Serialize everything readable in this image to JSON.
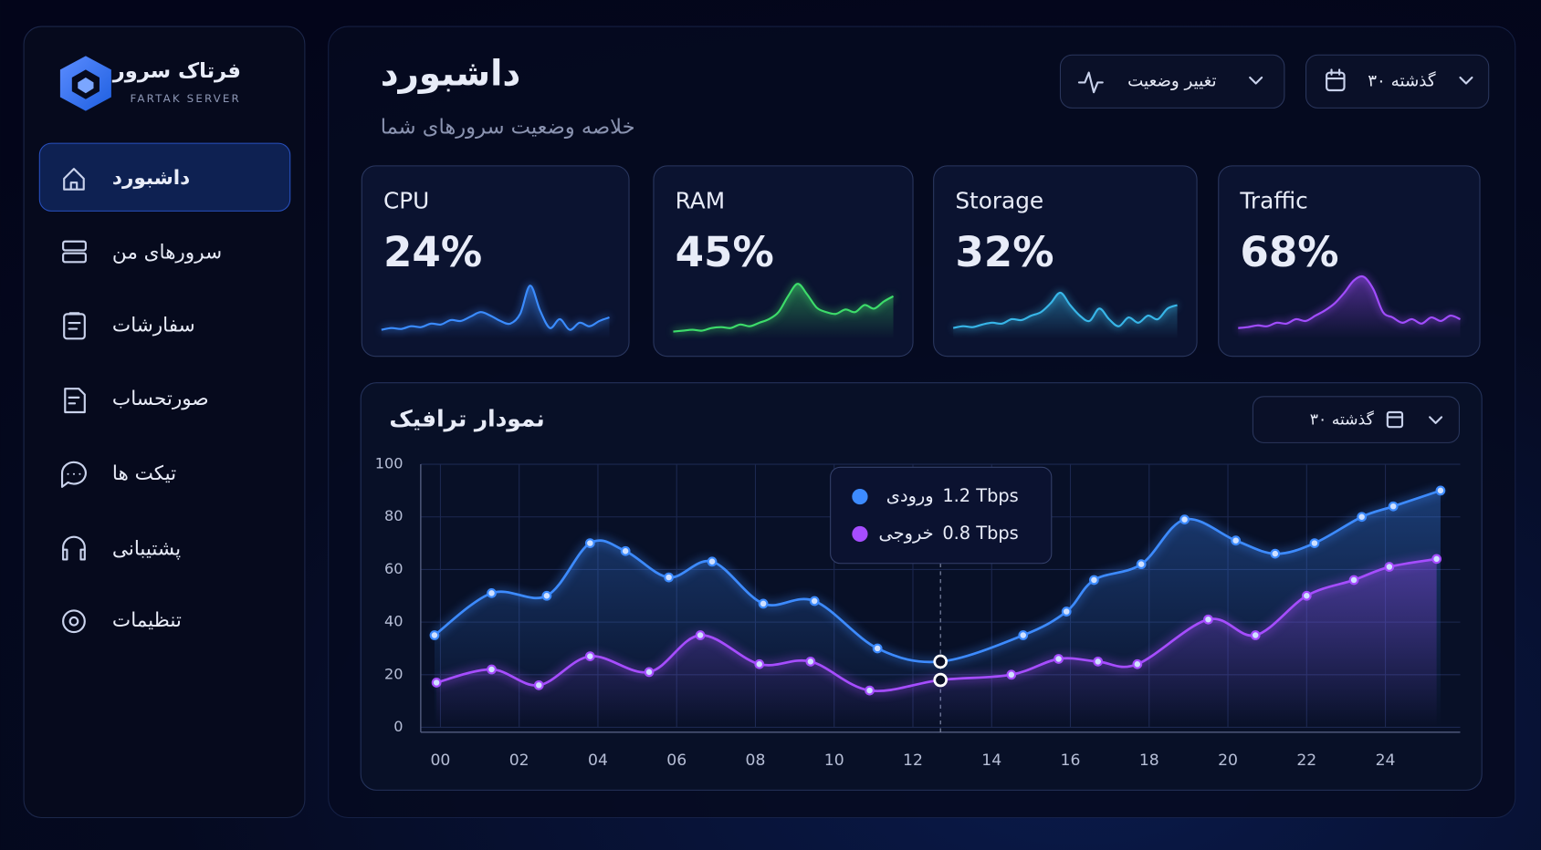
{
  "brand": {
    "name": "فرتاک سرور",
    "subtitle": "FARTAK SERVER"
  },
  "nav": [
    {
      "label": "داشبورد",
      "active": true
    },
    {
      "label": "سرورهای من",
      "active": false
    },
    {
      "label": "سفارشات",
      "active": false
    },
    {
      "label": "صورتحساب",
      "active": false
    },
    {
      "label": "تیکت ها",
      "active": false
    },
    {
      "label": "پشتیبانی",
      "active": false
    },
    {
      "label": "تنظیمات",
      "active": false
    }
  ],
  "header": {
    "title": "داشبورد",
    "subtitle": "خلاصه وضعیت سرورهای شما",
    "status_button": "تغییر وضعیت",
    "range_button": "۳۰ گذشته"
  },
  "cards": [
    {
      "label": "CPU",
      "value": "24%",
      "color": "#3b8cff",
      "trend": [
        10,
        12,
        11,
        14,
        13,
        17,
        16,
        21,
        20,
        25,
        30,
        26,
        20,
        17,
        28,
        60,
        32,
        12,
        22,
        10,
        18,
        14,
        20,
        24
      ]
    },
    {
      "label": "RAM",
      "value": "45%",
      "color": "#3ddc6a",
      "trend": [
        8,
        9,
        10,
        9,
        12,
        13,
        12,
        16,
        14,
        18,
        22,
        30,
        48,
        62,
        50,
        35,
        30,
        28,
        33,
        30,
        38,
        34,
        42,
        48
      ]
    },
    {
      "label": "Storage",
      "value": "32%",
      "color": "#38b6e8",
      "trend": [
        12,
        14,
        13,
        16,
        18,
        17,
        22,
        21,
        26,
        30,
        40,
        52,
        38,
        26,
        20,
        34,
        22,
        14,
        24,
        18,
        26,
        22,
        34,
        38
      ]
    },
    {
      "label": "Traffic",
      "value": "68%",
      "color": "#a24dff",
      "trend": [
        12,
        13,
        15,
        14,
        18,
        17,
        22,
        20,
        26,
        32,
        40,
        52,
        66,
        70,
        56,
        30,
        24,
        18,
        22,
        17,
        24,
        20,
        26,
        22
      ]
    }
  ],
  "traffic": {
    "title": "نمودار ترافیک",
    "range_button": "۳۰ گذشته",
    "tooltip": {
      "x": 12.7,
      "values": [
        "1.2 Tbps",
        "0.8 Tbps"
      ]
    }
  },
  "chart_data": {
    "type": "line",
    "xlim": [
      -0.5,
      25.9
    ],
    "xticks": [
      {
        "value": 0,
        "label": "00"
      },
      {
        "value": 2,
        "label": "02"
      },
      {
        "value": 4,
        "label": "04"
      },
      {
        "value": 6,
        "label": "06"
      },
      {
        "value": 8,
        "label": "08"
      },
      10,
      12,
      14,
      16,
      18,
      20,
      22,
      24
    ],
    "ylim": [
      0,
      100
    ],
    "yticks": [
      0,
      20,
      40,
      60,
      80,
      100
    ],
    "grid": true,
    "series": [
      {
        "name": "ورودی",
        "color": "#3d8bff",
        "x": [
          -0.15,
          1.3,
          2.7,
          3.8,
          4.7,
          5.8,
          6.9,
          8.2,
          9.5,
          11.1,
          12.7,
          14.8,
          15.9,
          16.6,
          17.8,
          18.9,
          20.2,
          21.2,
          22.2,
          23.4,
          24.2,
          25.4
        ],
        "values": [
          35,
          51,
          50,
          70,
          67,
          57,
          63,
          47,
          48,
          30,
          25,
          35,
          44,
          56,
          62,
          79,
          71,
          66,
          70,
          80,
          84,
          90
        ]
      },
      {
        "name": "خروجی",
        "color": "#a64dff",
        "x": [
          -0.1,
          1.3,
          2.5,
          3.8,
          5.3,
          6.6,
          8.1,
          9.4,
          10.9,
          12.7,
          14.5,
          15.7,
          16.7,
          17.7,
          19.5,
          20.7,
          22.0,
          23.2,
          24.1,
          25.3
        ],
        "values": [
          17,
          22,
          16,
          27,
          21,
          35,
          24,
          25,
          14,
          18,
          20,
          26,
          25,
          24,
          41,
          35,
          50,
          56,
          61,
          64
        ]
      }
    ]
  }
}
